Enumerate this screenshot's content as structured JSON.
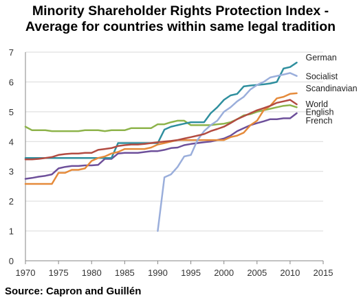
{
  "title_lines": [
    "Minority Shareholder Rights Protection Index -",
    "Average for countries within same legal tradition"
  ],
  "source": "Source: Capron and Guillén",
  "chart_data": {
    "type": "line",
    "title": "Minority Shareholder Rights Protection Index - Average for countries within same legal tradition",
    "xlabel": "",
    "ylabel": "",
    "xlim": [
      1970,
      2015
    ],
    "ylim": [
      0,
      7
    ],
    "xticks": [
      1970,
      1975,
      1980,
      1985,
      1990,
      1995,
      2000,
      2005,
      2010,
      2015
    ],
    "yticks": [
      0,
      1,
      2,
      3,
      4,
      5,
      6,
      7
    ],
    "grid": "horizontal",
    "legend": "inline labels at right end of lines",
    "series": [
      {
        "name": "English",
        "color": "#8db34a",
        "x": [
          1970,
          1971,
          1972,
          1973,
          1974,
          1975,
          1976,
          1977,
          1978,
          1979,
          1980,
          1981,
          1982,
          1983,
          1984,
          1985,
          1986,
          1987,
          1988,
          1989,
          1990,
          1991,
          1992,
          1993,
          1994,
          1995,
          1996,
          1997,
          1998,
          1999,
          2000,
          2001,
          2002,
          2003,
          2004,
          2005,
          2006,
          2007,
          2008,
          2009,
          2010,
          2011
        ],
        "values": [
          4.5,
          4.38,
          4.38,
          4.38,
          4.35,
          4.35,
          4.35,
          4.35,
          4.35,
          4.38,
          4.38,
          4.38,
          4.35,
          4.38,
          4.38,
          4.38,
          4.45,
          4.45,
          4.45,
          4.45,
          4.58,
          4.58,
          4.65,
          4.7,
          4.7,
          4.55,
          4.55,
          4.55,
          4.55,
          4.58,
          4.6,
          4.65,
          4.75,
          4.88,
          4.92,
          5.0,
          5.05,
          5.1,
          5.15,
          5.2,
          5.22,
          5.15
        ]
      },
      {
        "name": "French",
        "color": "#6d4f9a",
        "x": [
          1970,
          1971,
          1972,
          1973,
          1974,
          1975,
          1976,
          1977,
          1978,
          1979,
          1980,
          1981,
          1982,
          1983,
          1984,
          1985,
          1986,
          1987,
          1988,
          1989,
          1990,
          1991,
          1992,
          1993,
          1994,
          1995,
          1996,
          1997,
          1998,
          1999,
          2000,
          2001,
          2002,
          2003,
          2004,
          2005,
          2006,
          2007,
          2008,
          2009,
          2010,
          2011
        ],
        "values": [
          2.75,
          2.78,
          2.82,
          2.85,
          2.9,
          3.1,
          3.15,
          3.18,
          3.18,
          3.2,
          3.2,
          3.22,
          3.42,
          3.42,
          3.6,
          3.62,
          3.62,
          3.62,
          3.65,
          3.68,
          3.68,
          3.72,
          3.78,
          3.8,
          3.88,
          3.92,
          3.95,
          3.98,
          4.0,
          4.05,
          4.1,
          4.2,
          4.35,
          4.45,
          4.55,
          4.62,
          4.68,
          4.75,
          4.75,
          4.78,
          4.78,
          4.95
        ]
      },
      {
        "name": "German",
        "color": "#2f8f9e",
        "x": [
          1970,
          1971,
          1972,
          1973,
          1974,
          1975,
          1976,
          1977,
          1978,
          1979,
          1980,
          1981,
          1982,
          1983,
          1984,
          1985,
          1986,
          1987,
          1988,
          1989,
          1990,
          1991,
          1992,
          1993,
          1994,
          1995,
          1996,
          1997,
          1998,
          1999,
          2000,
          2001,
          2002,
          2003,
          2004,
          2005,
          2006,
          2007,
          2008,
          2009,
          2010,
          2011
        ],
        "values": [
          3.45,
          3.45,
          3.45,
          3.45,
          3.45,
          3.45,
          3.45,
          3.45,
          3.45,
          3.45,
          3.45,
          3.45,
          3.45,
          3.45,
          3.95,
          3.95,
          3.95,
          3.95,
          3.95,
          3.95,
          3.95,
          4.4,
          4.5,
          4.55,
          4.6,
          4.65,
          4.65,
          4.65,
          4.95,
          5.15,
          5.4,
          5.55,
          5.6,
          5.85,
          5.88,
          5.9,
          5.92,
          5.95,
          6.0,
          6.45,
          6.5,
          6.65
        ]
      },
      {
        "name": "Scandinavian",
        "color": "#e58a3a",
        "x": [
          1970,
          1971,
          1972,
          1973,
          1974,
          1975,
          1976,
          1977,
          1978,
          1979,
          1980,
          1981,
          1982,
          1983,
          1984,
          1985,
          1986,
          1987,
          1988,
          1989,
          1990,
          1991,
          1992,
          1993,
          1994,
          1995,
          1996,
          1997,
          1998,
          1999,
          2000,
          2001,
          2002,
          2003,
          2004,
          2005,
          2006,
          2007,
          2008,
          2009,
          2010,
          2011
        ],
        "values": [
          2.58,
          2.58,
          2.58,
          2.58,
          2.58,
          2.95,
          2.95,
          3.05,
          3.05,
          3.1,
          3.35,
          3.45,
          3.5,
          3.6,
          3.65,
          3.75,
          3.75,
          3.75,
          3.75,
          3.8,
          3.9,
          3.95,
          4.0,
          4.05,
          4.05,
          4.05,
          4.05,
          4.05,
          4.05,
          4.05,
          4.05,
          4.15,
          4.2,
          4.3,
          4.55,
          4.7,
          5.05,
          5.2,
          5.45,
          5.5,
          5.6,
          5.62
        ]
      },
      {
        "name": "Socialist",
        "color": "#9aaedb",
        "x": [
          1990,
          1991,
          1992,
          1993,
          1994,
          1995,
          1996,
          1997,
          1998,
          1999,
          2000,
          2001,
          2002,
          2003,
          2004,
          2005,
          2006,
          2007,
          2008,
          2009,
          2010,
          2011
        ],
        "values": [
          1.0,
          2.8,
          2.9,
          3.15,
          3.5,
          3.55,
          4.05,
          4.35,
          4.55,
          4.7,
          5.0,
          5.15,
          5.35,
          5.5,
          5.75,
          5.9,
          6.0,
          6.15,
          6.2,
          6.25,
          6.3,
          6.2
        ]
      },
      {
        "name": "World",
        "color": "#b24b41",
        "x": [
          1970,
          1971,
          1972,
          1973,
          1974,
          1975,
          1976,
          1977,
          1978,
          1979,
          1980,
          1981,
          1982,
          1983,
          1984,
          1985,
          1986,
          1987,
          1988,
          1989,
          1990,
          1991,
          1992,
          1993,
          1994,
          1995,
          1996,
          1997,
          1998,
          1999,
          2000,
          2001,
          2002,
          2003,
          2004,
          2005,
          2006,
          2007,
          2008,
          2009,
          2010,
          2011
        ],
        "values": [
          3.4,
          3.4,
          3.42,
          3.45,
          3.48,
          3.55,
          3.58,
          3.6,
          3.6,
          3.62,
          3.62,
          3.72,
          3.75,
          3.78,
          3.85,
          3.88,
          3.9,
          3.9,
          3.92,
          3.95,
          3.98,
          4.0,
          4.02,
          4.05,
          4.1,
          4.15,
          4.2,
          4.25,
          4.35,
          4.42,
          4.5,
          4.62,
          4.75,
          4.85,
          4.95,
          5.05,
          5.12,
          5.2,
          5.3,
          5.35,
          5.4,
          5.25
        ]
      }
    ],
    "labels": [
      {
        "text": "German",
        "series": "German",
        "color": "#1f1f1f"
      },
      {
        "text": "Socialist",
        "series": "Socialist",
        "color": "#1f1f1f"
      },
      {
        "text": "Scandinavian",
        "series": "Scandinavian",
        "color": "#1f1f1f"
      },
      {
        "text": "World",
        "series": "World",
        "color": "#1f1f1f"
      },
      {
        "text": "English",
        "series": "English",
        "color": "#1f1f1f"
      },
      {
        "text": "French",
        "series": "French",
        "color": "#1f1f1f"
      }
    ]
  }
}
